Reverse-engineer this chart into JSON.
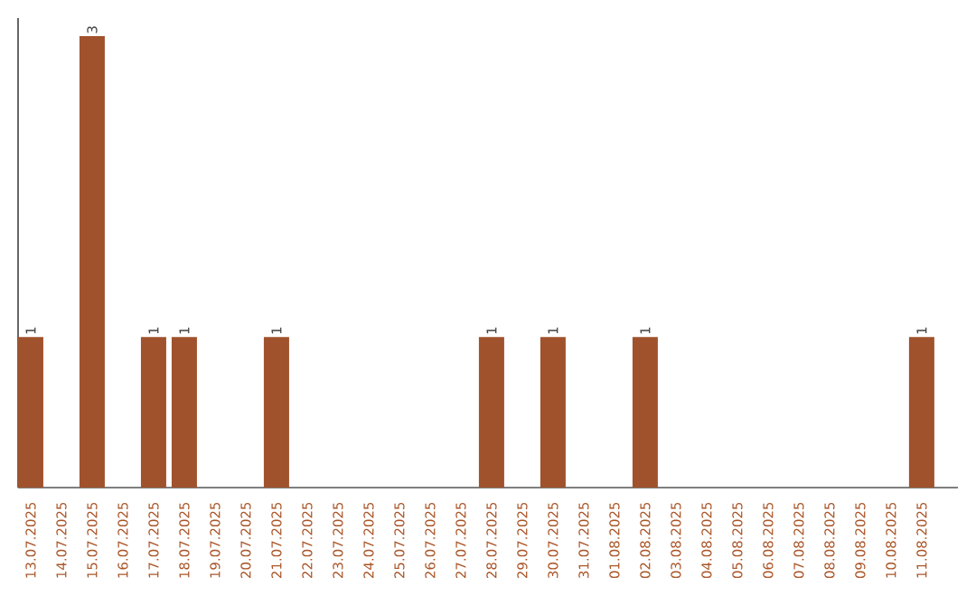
{
  "chart_data": {
    "type": "bar",
    "categories": [
      "13.07.2025",
      "14.07.2025",
      "15.07.2025",
      "16.07.2025",
      "17.07.2025",
      "18.07.2025",
      "19.07.2025",
      "20.07.2025",
      "21.07.2025",
      "22.07.2025",
      "23.07.2025",
      "24.07.2025",
      "25.07.2025",
      "26.07.2025",
      "27.07.2025",
      "28.07.2025",
      "29.07.2025",
      "30.07.2025",
      "31.07.2025",
      "01.08.2025",
      "02.08.2025",
      "03.08.2025",
      "04.08.2025",
      "05.08.2025",
      "06.08.2025",
      "07.08.2025",
      "08.08.2025",
      "09.08.2025",
      "10.08.2025",
      "11.08.2025"
    ],
    "values": [
      1,
      0,
      3,
      0,
      1,
      1,
      0,
      0,
      1,
      0,
      0,
      0,
      0,
      0,
      0,
      1,
      0,
      1,
      0,
      0,
      1,
      0,
      0,
      0,
      0,
      0,
      0,
      0,
      0,
      1
    ],
    "value_labels": [
      "1",
      null,
      "3",
      null,
      "1",
      "1",
      null,
      null,
      "1",
      null,
      null,
      null,
      null,
      null,
      null,
      "1",
      null,
      "1",
      null,
      null,
      "1",
      null,
      null,
      null,
      null,
      null,
      null,
      null,
      null,
      "1"
    ],
    "color": "#a0522d"
  }
}
